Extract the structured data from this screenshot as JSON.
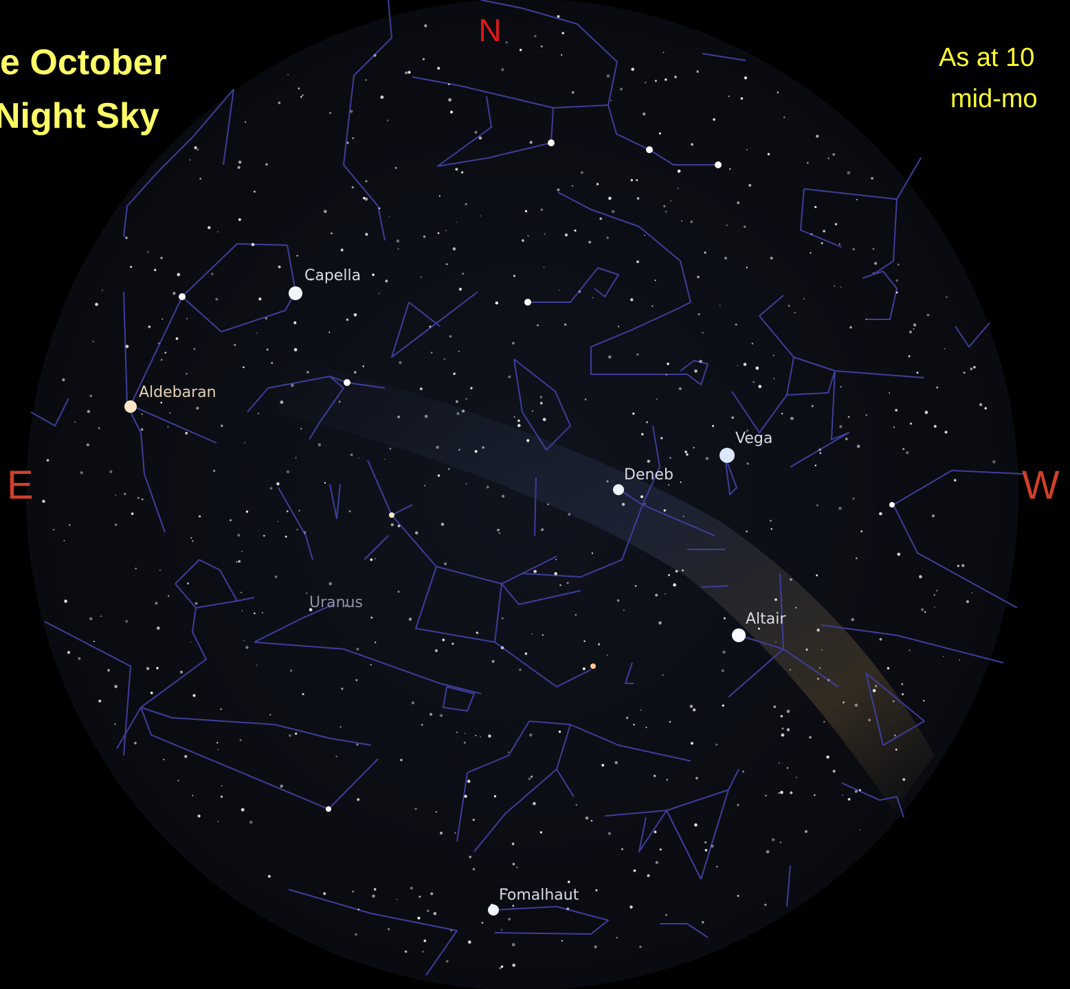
{
  "title": [
    "e October",
    "Night Sky"
  ],
  "subtitle": [
    "As at 10",
    "mid-mo"
  ],
  "compass": {
    "north": "N",
    "east": "E",
    "west": "W"
  },
  "labels": {
    "capella": "Capella",
    "aldebaran": "Aldebaran",
    "vega": "Vega",
    "deneb": "Deneb",
    "altair": "Altair",
    "uranus": "Uranus",
    "fomalhaut": "Fomalhaut"
  }
}
